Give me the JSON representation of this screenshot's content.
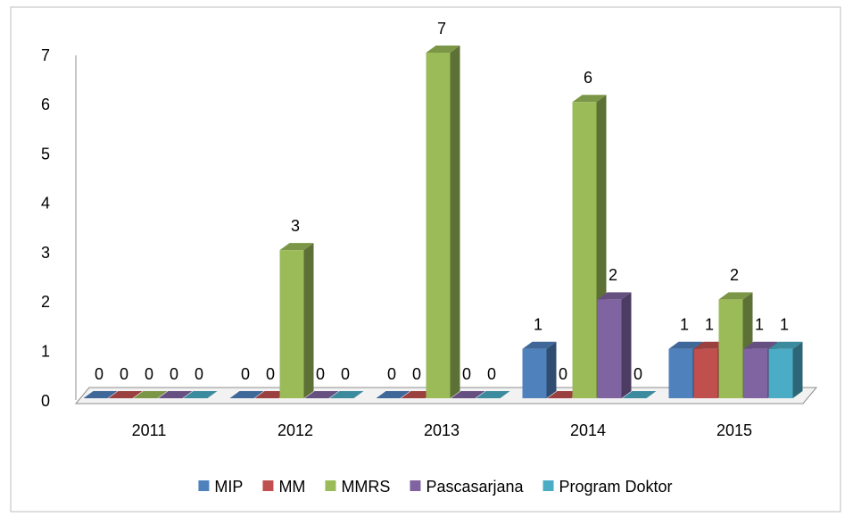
{
  "chart_data": {
    "type": "bar3d",
    "categories": [
      "2011",
      "2012",
      "2013",
      "2014",
      "2015"
    ],
    "series": [
      {
        "name": "MIP",
        "color": "#4f81bd",
        "values": [
          0,
          0,
          0,
          1,
          1
        ]
      },
      {
        "name": "MM",
        "color": "#c0504d",
        "values": [
          0,
          0,
          0,
          0,
          1
        ]
      },
      {
        "name": "MMRS",
        "color": "#9bbb59",
        "values": [
          0,
          3,
          7,
          6,
          2
        ]
      },
      {
        "name": "Pascasarjana",
        "color": "#8064a2",
        "values": [
          0,
          0,
          0,
          2,
          1
        ]
      },
      {
        "name": "Program Doktor",
        "color": "#4bacc6",
        "values": [
          0,
          0,
          0,
          0,
          1
        ]
      }
    ],
    "ylim": [
      0,
      7
    ],
    "yticks": [
      0,
      1,
      2,
      3,
      4,
      5,
      6,
      7
    ],
    "legend": "bottom",
    "data_labels": true
  }
}
